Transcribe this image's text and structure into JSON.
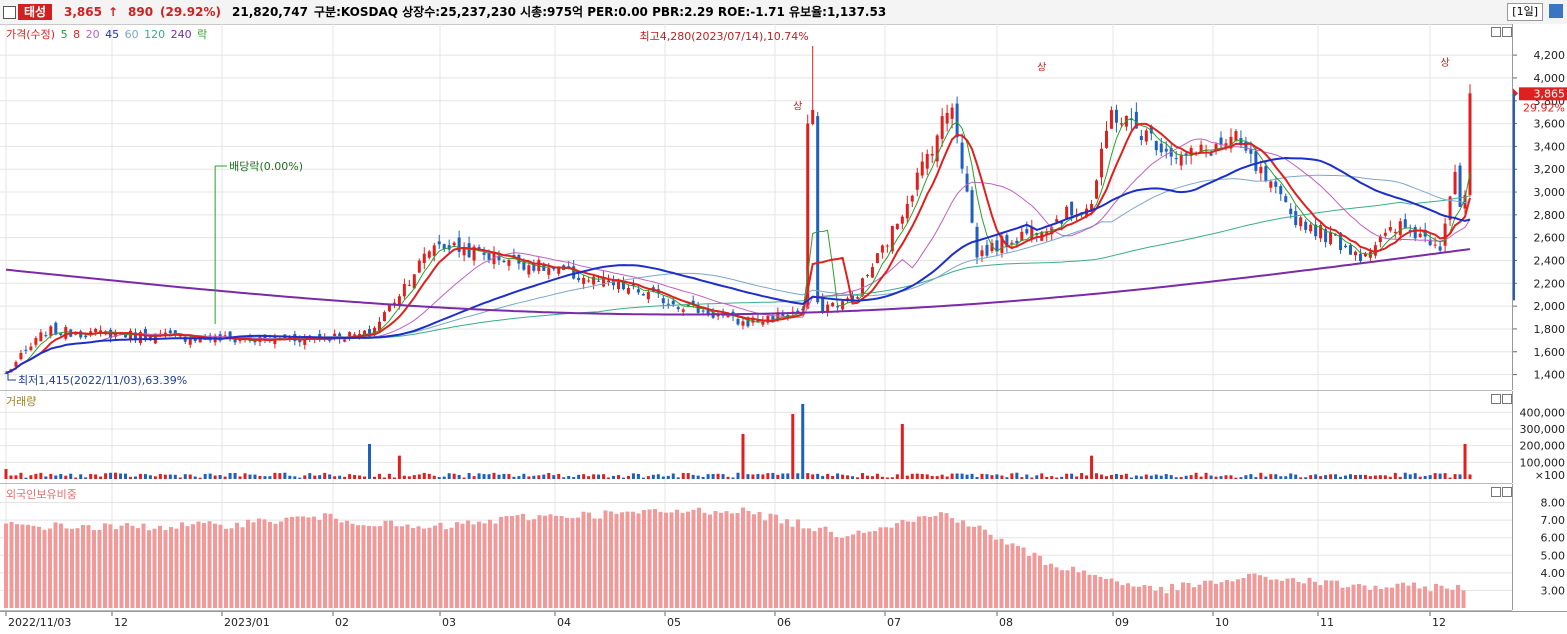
{
  "header": {
    "stock_name": "태성",
    "price": "3,865",
    "change_arrow": "↑",
    "change": "890",
    "change_pct": "(29.92%)",
    "volume": "21,820,747",
    "info": "구분:KOSDAQ 상장수:25,237,230 시총:975억 PER:0.00 PBR:2.29 ROE:-1.71 유보율:1,137.53",
    "period": "[1일]"
  },
  "legend_price": {
    "main": "가격(수정)",
    "ma5": "5",
    "ma8": "8",
    "ma20": "20",
    "ma45": "45",
    "ma60": "60",
    "ma120": "120",
    "ma240": "240",
    "drop": "락"
  },
  "legend_volume": "거래량",
  "legend_foreign": "외국인보유비중",
  "annotations": {
    "high": "최고4,280(2023/07/14),10.74%",
    "low": "최저1,415(2022/11/03),63.39%",
    "dividend": "배당락(0.00%)",
    "upper_limit": "상",
    "current_price": "3,865",
    "current_pct": "29.92%"
  },
  "colors": {
    "up": "#e0201e",
    "down": "#1f5fbf",
    "ma5": "#2ca02c",
    "ma8": "#e0201e",
    "ma20": "#c060c0",
    "ma45": "#1c2fc8",
    "ma60": "#7ba7c8",
    "ma120": "#3aae8a",
    "ma240": "#7b2aa8",
    "foreign": "#f29a9a"
  },
  "chart_data": [
    {
      "type": "candlestick",
      "title": "가격(수정)",
      "x_ticks": [
        "2022/11/03",
        "12",
        "2023/01",
        "02",
        "03",
        "04",
        "05",
        "06",
        "07",
        "08",
        "09",
        "10",
        "11",
        "12"
      ],
      "y_ticks": [
        "4,200",
        "4,000",
        "3,800",
        "3,600",
        "3,400",
        "3,200",
        "3,000",
        "2,800",
        "2,600",
        "2,400",
        "2,200",
        "2,000",
        "1,800",
        "1,600",
        "1,400"
      ],
      "ylim": [
        1300,
        4350
      ],
      "close_by_month": [
        {
          "x": "2022/11/03",
          "close": 1415
        },
        {
          "x": "11",
          "close": 1780
        },
        {
          "x": "12",
          "close": 1750
        },
        {
          "x": "2023/01",
          "close": 1700
        },
        {
          "x": "02",
          "close": 1750
        },
        {
          "x": "02 late",
          "close": 2550
        },
        {
          "x": "03",
          "close": 2400
        },
        {
          "x": "04",
          "close": 2150
        },
        {
          "x": "05",
          "close": 1850
        },
        {
          "x": "06",
          "close": 2050
        },
        {
          "x": "06 mid",
          "close": 2650
        },
        {
          "x": "07",
          "close": 2450
        },
        {
          "x": "07/14",
          "close": 3800
        },
        {
          "x": "08",
          "close": 2900
        },
        {
          "x": "08 mid",
          "close": 3700
        },
        {
          "x": "09",
          "close": 3300
        },
        {
          "x": "09 mid",
          "close": 3450
        },
        {
          "x": "10",
          "close": 2800
        },
        {
          "x": "11",
          "close": 2450
        },
        {
          "x": "11 mid",
          "close": 2700
        },
        {
          "x": "12",
          "close": 2550
        },
        {
          "x": "12 end",
          "close": 3865
        }
      ],
      "moving_averages": [
        "5",
        "8",
        "20",
        "45",
        "60",
        "120",
        "240"
      ],
      "high": 4280,
      "low": 1415
    },
    {
      "type": "bar",
      "title": "거래량",
      "y_ticks": [
        "400,000",
        "300,000",
        "200,000",
        "100,000"
      ],
      "unit": "×100",
      "ylim": [
        0,
        480000
      ],
      "spikes": [
        {
          "x": "02 late",
          "value": 210000
        },
        {
          "x": "03",
          "value": 140000
        },
        {
          "x": "06",
          "value": 270000
        },
        {
          "x": "07/13",
          "value": 390000
        },
        {
          "x": "07/14",
          "value": 450000
        },
        {
          "x": "08",
          "value": 330000
        },
        {
          "x": "09",
          "value": 140000
        },
        {
          "x": "12 end",
          "value": 210000
        }
      ]
    },
    {
      "type": "bar",
      "title": "외국인보유비중",
      "y_ticks": [
        "8.00",
        "7.00",
        "6.00",
        "5.00",
        "4.00",
        "3.00"
      ],
      "ylim": [
        2.0,
        8.6
      ],
      "values_by_month": [
        {
          "x": "11",
          "value": 6.7
        },
        {
          "x": "12",
          "value": 6.6
        },
        {
          "x": "2023/01",
          "value": 6.7
        },
        {
          "x": "02",
          "value": 7.2
        },
        {
          "x": "03",
          "value": 6.5
        },
        {
          "x": "04",
          "value": 7.2
        },
        {
          "x": "05",
          "value": 7.4
        },
        {
          "x": "06",
          "value": 7.6
        },
        {
          "x": "07",
          "value": 6.2
        },
        {
          "x": "08",
          "value": 7.4
        },
        {
          "x": "09",
          "value": 4.5
        },
        {
          "x": "10",
          "value": 3.0
        },
        {
          "x": "11",
          "value": 3.8
        },
        {
          "x": "12",
          "value": 3.2
        }
      ]
    }
  ]
}
